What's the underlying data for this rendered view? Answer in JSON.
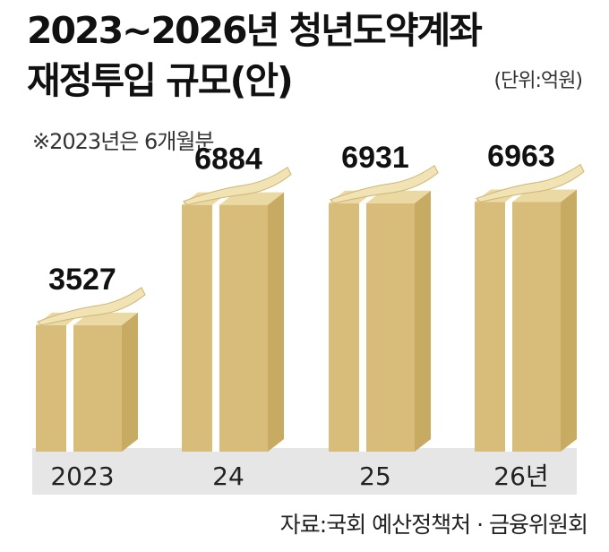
{
  "header": {
    "title_line1": "2023~2026년 청년도약계좌",
    "title_line2": "재정투입 규모(안)",
    "unit": "(단위:억원)",
    "note": "※2023년은 6개월분"
  },
  "footer": {
    "source": "자료:국회 예산정책처 · 금융위원회"
  },
  "colors": {
    "band": "#e6e6e6",
    "box_front": "#d7bd79",
    "box_side": "#c8ab62",
    "box_top": "#ebd9a4",
    "stripe": "#ffffff",
    "bill": "#f1e3b4"
  },
  "chart_data": {
    "type": "bar",
    "categories": [
      "2023",
      "24",
      "25",
      "26년"
    ],
    "values": [
      3527,
      6884,
      6931,
      6963
    ],
    "title": "2023~2026년 청년도약계좌 재정투입 규모(안)",
    "unit": "억원",
    "ylim": [
      0,
      7500
    ],
    "grid": false,
    "legend": "none"
  }
}
